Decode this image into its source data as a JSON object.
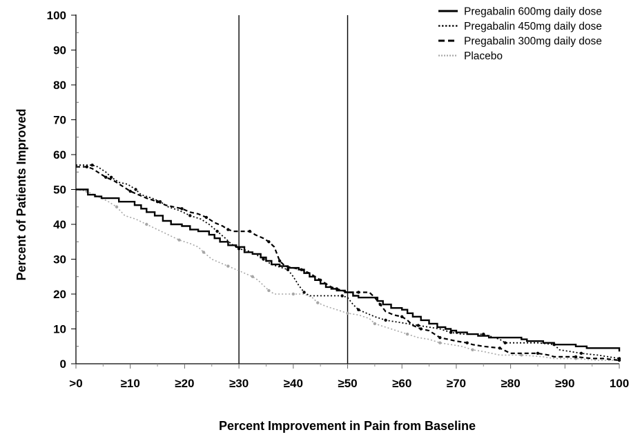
{
  "chart_data": {
    "type": "line",
    "title": "",
    "xlabel": "Percent Improvement in Pain from Baseline",
    "ylabel": "Percent of Patients Improved",
    "xlim": [
      0,
      100
    ],
    "ylim": [
      0,
      100
    ],
    "grid": false,
    "legend_position": "top-right",
    "x_ticks": [
      {
        "value": 0,
        "label": ">0"
      },
      {
        "value": 10,
        "label": "≥10"
      },
      {
        "value": 20,
        "label": "≥20"
      },
      {
        "value": 30,
        "label": "≥30"
      },
      {
        "value": 40,
        "label": "≥40"
      },
      {
        "value": 50,
        "label": "≥50"
      },
      {
        "value": 60,
        "label": "≥60"
      },
      {
        "value": 70,
        "label": "≥70"
      },
      {
        "value": 80,
        "label": "≥80"
      },
      {
        "value": 90,
        "label": "≥90"
      },
      {
        "value": 100,
        "label": "100"
      }
    ],
    "y_ticks": [
      {
        "value": 0,
        "label": "0"
      },
      {
        "value": 10,
        "label": "10"
      },
      {
        "value": 20,
        "label": "20"
      },
      {
        "value": 30,
        "label": "30"
      },
      {
        "value": 40,
        "label": "40"
      },
      {
        "value": 50,
        "label": "50"
      },
      {
        "value": 60,
        "label": "60"
      },
      {
        "value": 70,
        "label": "70"
      },
      {
        "value": 80,
        "label": "80"
      },
      {
        "value": 90,
        "label": "90"
      },
      {
        "value": 100,
        "label": "100"
      }
    ],
    "reference_lines_x": [
      30,
      50
    ],
    "series": [
      {
        "name": "Pregabalin 600mg daily dose",
        "style": "solid",
        "color": "#000000",
        "points": [
          [
            0,
            50
          ],
          [
            2.2,
            50
          ],
          [
            2.2,
            48.5
          ],
          [
            3.5,
            48.5
          ],
          [
            3.5,
            48
          ],
          [
            4.7,
            48
          ],
          [
            4.7,
            47.5
          ],
          [
            7.9,
            47.5
          ],
          [
            7.9,
            46.5
          ],
          [
            10.8,
            46.5
          ],
          [
            10.8,
            45.5
          ],
          [
            12,
            45.5
          ],
          [
            12,
            44.5
          ],
          [
            13,
            44.5
          ],
          [
            13,
            43.5
          ],
          [
            14.5,
            43.5
          ],
          [
            14.5,
            42.5
          ],
          [
            16,
            42.5
          ],
          [
            16,
            41
          ],
          [
            17.5,
            41
          ],
          [
            17.5,
            40
          ],
          [
            19.5,
            40
          ],
          [
            19.5,
            39.5
          ],
          [
            21,
            39.5
          ],
          [
            21,
            38.5
          ],
          [
            22.5,
            38.5
          ],
          [
            22.5,
            38
          ],
          [
            24.5,
            38
          ],
          [
            24.5,
            37
          ],
          [
            25.5,
            37
          ],
          [
            25.5,
            36
          ],
          [
            26.5,
            36
          ],
          [
            26.5,
            35
          ],
          [
            28,
            35
          ],
          [
            28,
            34
          ],
          [
            29.5,
            34
          ],
          [
            29.5,
            33.5
          ],
          [
            31,
            33.5
          ],
          [
            31,
            32
          ],
          [
            32.5,
            32
          ],
          [
            32.5,
            31.5
          ],
          [
            34,
            31.5
          ],
          [
            34,
            30.5
          ],
          [
            35,
            30.5
          ],
          [
            35,
            29.5
          ],
          [
            36,
            29.5
          ],
          [
            36,
            28.5
          ],
          [
            37.5,
            28.5
          ],
          [
            37.5,
            28
          ],
          [
            39,
            28
          ],
          [
            39,
            27.5
          ],
          [
            41,
            27.5
          ],
          [
            41,
            27
          ],
          [
            42,
            27
          ],
          [
            42,
            26
          ],
          [
            43,
            26
          ],
          [
            43,
            25
          ],
          [
            44,
            25
          ],
          [
            44,
            24
          ],
          [
            45,
            24
          ],
          [
            45,
            23
          ],
          [
            46,
            23
          ],
          [
            46,
            22
          ],
          [
            47,
            22
          ],
          [
            47,
            21.5
          ],
          [
            48,
            21.5
          ],
          [
            48,
            21
          ],
          [
            49.5,
            21
          ],
          [
            49.5,
            20.5
          ],
          [
            51,
            20.5
          ],
          [
            51,
            19.5
          ],
          [
            52,
            19.5
          ],
          [
            52,
            19
          ],
          [
            55.5,
            19
          ],
          [
            55.5,
            18
          ],
          [
            56.5,
            18
          ],
          [
            56.5,
            17
          ],
          [
            58,
            17
          ],
          [
            58,
            16
          ],
          [
            60,
            16
          ],
          [
            60,
            15.5
          ],
          [
            61,
            15.5
          ],
          [
            61,
            14.5
          ],
          [
            62,
            14.5
          ],
          [
            62,
            13.5
          ],
          [
            63.5,
            13.5
          ],
          [
            63.5,
            12.5
          ],
          [
            65,
            12.5
          ],
          [
            65,
            11.5
          ],
          [
            66.5,
            11.5
          ],
          [
            66.5,
            10.5
          ],
          [
            68,
            10.5
          ],
          [
            68,
            10
          ],
          [
            69,
            10
          ],
          [
            69,
            9.5
          ],
          [
            70,
            9.5
          ],
          [
            70,
            9
          ],
          [
            72,
            9
          ],
          [
            72,
            8.5
          ],
          [
            74,
            8.5
          ],
          [
            74,
            8
          ],
          [
            76,
            8
          ],
          [
            76,
            7.5
          ],
          [
            82,
            7.5
          ],
          [
            82,
            7
          ],
          [
            83,
            7
          ],
          [
            83,
            6.5
          ],
          [
            86,
            6.5
          ],
          [
            86,
            6
          ],
          [
            88,
            6
          ],
          [
            88,
            5.5
          ],
          [
            92,
            5.5
          ],
          [
            92,
            5
          ],
          [
            94,
            5
          ],
          [
            94,
            4.5
          ],
          [
            100,
            4.5
          ],
          [
            100,
            3.5
          ]
        ]
      },
      {
        "name": "Pregabalin 450mg daily dose",
        "style": "dotted",
        "color": "#000000",
        "points": [
          [
            0,
            57
          ],
          [
            3,
            57
          ],
          [
            4,
            56.5
          ],
          [
            5.5,
            55
          ],
          [
            6.5,
            53.5
          ],
          [
            8,
            52
          ],
          [
            9.5,
            51.5
          ],
          [
            11,
            50
          ],
          [
            12,
            48.5
          ],
          [
            14,
            47.5
          ],
          [
            15.5,
            46.5
          ],
          [
            17,
            45
          ],
          [
            19,
            44
          ],
          [
            21,
            42.5
          ],
          [
            23,
            41.5
          ],
          [
            24.5,
            40
          ],
          [
            26,
            38
          ],
          [
            27.5,
            36
          ],
          [
            28.5,
            34.5
          ],
          [
            30,
            33
          ],
          [
            31.5,
            32.5
          ],
          [
            33,
            31.5
          ],
          [
            34.5,
            30
          ],
          [
            36,
            28.5
          ],
          [
            38,
            27.5
          ],
          [
            39,
            27
          ],
          [
            40,
            25
          ],
          [
            41,
            22.5
          ],
          [
            42,
            20.5
          ],
          [
            43,
            19.5
          ],
          [
            46,
            19.5
          ],
          [
            49,
            19.5
          ],
          [
            50,
            19
          ],
          [
            51,
            17
          ],
          [
            52,
            15.5
          ],
          [
            53.5,
            14.5
          ],
          [
            55,
            13.5
          ],
          [
            57,
            12.5
          ],
          [
            59,
            12
          ],
          [
            61,
            11.5
          ],
          [
            63,
            11
          ],
          [
            65,
            10.5
          ],
          [
            67,
            10
          ],
          [
            69,
            9
          ],
          [
            71,
            8.5
          ],
          [
            73,
            8.5
          ],
          [
            75,
            8.5
          ],
          [
            76,
            8
          ],
          [
            78,
            7
          ],
          [
            79,
            6
          ],
          [
            82,
            6
          ],
          [
            85,
            6
          ],
          [
            88,
            5.5
          ],
          [
            89,
            4
          ],
          [
            91,
            3.5
          ],
          [
            93,
            3
          ],
          [
            96,
            2.5
          ],
          [
            98,
            2
          ],
          [
            100,
            1.5
          ]
        ]
      },
      {
        "name": "Pregabalin 300mg daily dose",
        "style": "dashed",
        "color": "#000000",
        "points": [
          [
            0,
            56.5
          ],
          [
            2,
            56.5
          ],
          [
            3,
            56
          ],
          [
            4.5,
            54.5
          ],
          [
            5.5,
            53.5
          ],
          [
            7,
            52.5
          ],
          [
            8.5,
            51
          ],
          [
            10,
            49.5
          ],
          [
            11.5,
            48.5
          ],
          [
            13,
            47.5
          ],
          [
            15,
            46.5
          ],
          [
            16.5,
            45.5
          ],
          [
            18,
            45
          ],
          [
            19.5,
            44.5
          ],
          [
            21,
            43.5
          ],
          [
            22.5,
            43
          ],
          [
            24,
            42
          ],
          [
            25.5,
            40.5
          ],
          [
            27,
            39.5
          ],
          [
            28,
            38.5
          ],
          [
            29,
            38
          ],
          [
            30,
            38
          ],
          [
            32,
            38
          ],
          [
            33,
            37
          ],
          [
            34.5,
            36
          ],
          [
            35.5,
            35
          ],
          [
            36.5,
            33.5
          ],
          [
            37,
            31.5
          ],
          [
            37.5,
            29.5
          ],
          [
            38.5,
            28
          ],
          [
            40,
            27.5
          ],
          [
            41.5,
            27
          ],
          [
            43,
            26
          ],
          [
            44,
            25
          ],
          [
            45,
            24
          ],
          [
            46,
            23
          ],
          [
            47,
            22
          ],
          [
            48,
            21.5
          ],
          [
            49,
            21
          ],
          [
            50,
            20.5
          ],
          [
            52,
            20.5
          ],
          [
            54,
            20.5
          ],
          [
            55,
            19
          ],
          [
            56,
            17
          ],
          [
            57,
            15
          ],
          [
            58.5,
            14
          ],
          [
            60,
            13.5
          ],
          [
            61,
            12.5
          ],
          [
            62,
            11
          ],
          [
            63.5,
            10
          ],
          [
            65,
            9.5
          ],
          [
            66,
            8.5
          ],
          [
            67,
            7.5
          ],
          [
            68.5,
            7
          ],
          [
            70,
            6.5
          ],
          [
            72,
            6
          ],
          [
            73,
            5.5
          ],
          [
            75,
            5
          ],
          [
            78,
            4.5
          ],
          [
            80,
            3
          ],
          [
            83,
            3
          ],
          [
            85,
            3
          ],
          [
            87,
            2.5
          ],
          [
            88,
            2
          ],
          [
            92,
            2
          ],
          [
            95,
            1.5
          ],
          [
            97,
            1.5
          ],
          [
            100,
            1
          ]
        ]
      },
      {
        "name": "Placebo",
        "style": "dotted-gray",
        "color": "#a6a6a6",
        "points": [
          [
            0,
            50
          ],
          [
            2,
            49.5
          ],
          [
            4,
            48
          ],
          [
            6,
            46.5
          ],
          [
            7.5,
            45
          ],
          [
            9,
            42.5
          ],
          [
            11,
            41.5
          ],
          [
            13,
            40
          ],
          [
            15,
            38.5
          ],
          [
            17,
            37
          ],
          [
            19,
            35.5
          ],
          [
            21,
            34.5
          ],
          [
            22.5,
            33.5
          ],
          [
            23.5,
            32
          ],
          [
            25,
            30
          ],
          [
            26.5,
            29
          ],
          [
            28,
            28
          ],
          [
            29.5,
            27
          ],
          [
            31,
            26
          ],
          [
            32.5,
            25
          ],
          [
            33.5,
            24
          ],
          [
            34.5,
            22.5
          ],
          [
            35.5,
            21
          ],
          [
            36.5,
            20
          ],
          [
            38,
            20
          ],
          [
            40,
            20
          ],
          [
            42,
            20
          ],
          [
            43.5,
            19
          ],
          [
            44.5,
            17.5
          ],
          [
            46,
            16.5
          ],
          [
            48,
            15.5
          ],
          [
            50,
            14.5
          ],
          [
            52,
            14
          ],
          [
            54,
            13
          ],
          [
            55,
            11.5
          ],
          [
            57,
            10.5
          ],
          [
            59,
            9.5
          ],
          [
            61,
            8.5
          ],
          [
            63,
            7.5
          ],
          [
            65,
            7
          ],
          [
            67,
            6
          ],
          [
            69,
            5.5
          ],
          [
            71,
            5
          ],
          [
            73,
            4
          ],
          [
            75,
            3.5
          ],
          [
            78,
            2.5
          ],
          [
            82,
            2.5
          ],
          [
            86,
            2
          ],
          [
            88,
            1.5
          ],
          [
            92,
            1.5
          ],
          [
            96,
            1
          ],
          [
            100,
            1
          ]
        ]
      }
    ]
  }
}
